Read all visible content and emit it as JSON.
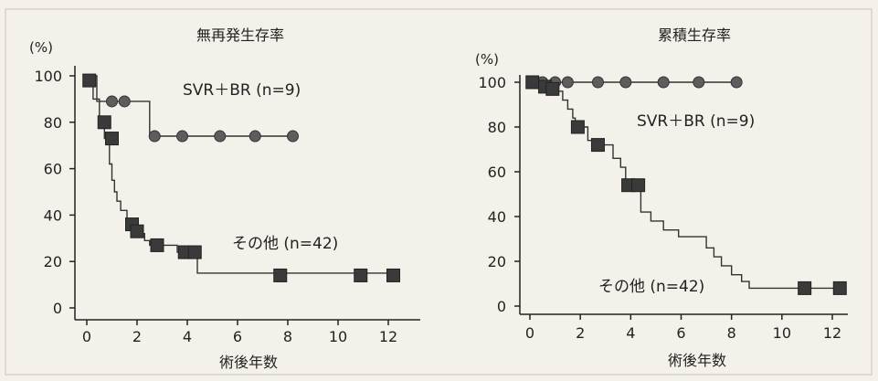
{
  "chart_data": [
    {
      "type": "line",
      "title": "無再発生存率",
      "ylabel": "(%)",
      "xlabel": "術後年数",
      "xlim": [
        0,
        12.6
      ],
      "ylim": [
        0,
        100
      ],
      "xticks": [
        "0",
        "2",
        "4",
        "6",
        "8",
        "10",
        "12"
      ],
      "yticks": [
        "0",
        "20",
        "40",
        "60",
        "80",
        "100"
      ],
      "grid": false,
      "series": [
        {
          "name": "SVR＋BR (n=9)",
          "marker": "circle",
          "step": [
            [
              0,
              100
            ],
            [
              0.4,
              100
            ],
            [
              0.4,
              89
            ],
            [
              2.5,
              89
            ],
            [
              2.5,
              74
            ],
            [
              8.3,
              74
            ]
          ],
          "markers": [
            [
              1.0,
              89
            ],
            [
              1.5,
              89
            ],
            [
              2.7,
              74
            ],
            [
              3.8,
              74
            ],
            [
              5.3,
              74
            ],
            [
              6.7,
              74
            ],
            [
              8.2,
              74
            ]
          ]
        },
        {
          "name": "その他 (n=42)",
          "marker": "square",
          "step": [
            [
              0,
              98
            ],
            [
              0.25,
              98
            ],
            [
              0.25,
              90
            ],
            [
              0.5,
              90
            ],
            [
              0.5,
              80
            ],
            [
              0.7,
              80
            ],
            [
              0.7,
              73
            ],
            [
              0.9,
              73
            ],
            [
              0.9,
              62
            ],
            [
              1.0,
              62
            ],
            [
              1.0,
              55
            ],
            [
              1.1,
              55
            ],
            [
              1.1,
              50
            ],
            [
              1.2,
              50
            ],
            [
              1.2,
              46
            ],
            [
              1.35,
              46
            ],
            [
              1.35,
              42
            ],
            [
              1.6,
              42
            ],
            [
              1.6,
              38
            ],
            [
              1.8,
              38
            ],
            [
              1.8,
              35
            ],
            [
              2.0,
              35
            ],
            [
              2.0,
              32
            ],
            [
              2.3,
              32
            ],
            [
              2.3,
              29
            ],
            [
              2.5,
              29
            ],
            [
              2.5,
              27
            ],
            [
              3.6,
              27
            ],
            [
              3.6,
              24
            ],
            [
              4.4,
              24
            ],
            [
              4.4,
              15
            ],
            [
              12.3,
              15
            ]
          ],
          "markers": [
            [
              0.1,
              98
            ],
            [
              0.7,
              80
            ],
            [
              1.0,
              73
            ],
            [
              1.8,
              36
            ],
            [
              2.0,
              33
            ],
            [
              2.8,
              27
            ],
            [
              3.9,
              24
            ],
            [
              4.3,
              24
            ],
            [
              7.7,
              14
            ],
            [
              10.9,
              14
            ],
            [
              12.2,
              14
            ]
          ]
        }
      ],
      "annotations": [
        "SVR＋BR (n=9)",
        "その他 (n=42)"
      ]
    },
    {
      "type": "line",
      "title": "累積生存率",
      "ylabel": "(%)",
      "xlabel": "術後年数",
      "xlim": [
        0,
        12.6
      ],
      "ylim": [
        0,
        100
      ],
      "xticks": [
        "0",
        "2",
        "4",
        "6",
        "8",
        "10",
        "12"
      ],
      "yticks": [
        "0",
        "20",
        "40",
        "60",
        "80",
        "100"
      ],
      "grid": false,
      "series": [
        {
          "name": "SVR＋BR (n=9)",
          "marker": "circle",
          "step": [
            [
              0,
              100
            ],
            [
              8.3,
              100
            ]
          ],
          "markers": [
            [
              0.5,
              100
            ],
            [
              1.0,
              100
            ],
            [
              1.5,
              100
            ],
            [
              2.7,
              100
            ],
            [
              3.8,
              100
            ],
            [
              5.3,
              100
            ],
            [
              6.7,
              100
            ],
            [
              8.2,
              100
            ]
          ]
        },
        {
          "name": "その他 (n=42)",
          "marker": "square",
          "step": [
            [
              0,
              100
            ],
            [
              0.5,
              100
            ],
            [
              0.5,
              98
            ],
            [
              1.0,
              98
            ],
            [
              1.0,
              96
            ],
            [
              1.3,
              96
            ],
            [
              1.3,
              92
            ],
            [
              1.5,
              92
            ],
            [
              1.5,
              88
            ],
            [
              1.7,
              88
            ],
            [
              1.7,
              84
            ],
            [
              1.8,
              84
            ],
            [
              1.8,
              80
            ],
            [
              2.3,
              80
            ],
            [
              2.3,
              74
            ],
            [
              2.5,
              74
            ],
            [
              2.5,
              72
            ],
            [
              3.3,
              72
            ],
            [
              3.3,
              66
            ],
            [
              3.6,
              66
            ],
            [
              3.6,
              62
            ],
            [
              3.8,
              62
            ],
            [
              3.8,
              54
            ],
            [
              4.4,
              54
            ],
            [
              4.4,
              42
            ],
            [
              4.8,
              42
            ],
            [
              4.8,
              38
            ],
            [
              5.3,
              38
            ],
            [
              5.3,
              34
            ],
            [
              5.9,
              34
            ],
            [
              5.9,
              31
            ],
            [
              7.0,
              31
            ],
            [
              7.0,
              26
            ],
            [
              7.3,
              26
            ],
            [
              7.3,
              22
            ],
            [
              7.6,
              22
            ],
            [
              7.6,
              18
            ],
            [
              8.0,
              18
            ],
            [
              8.0,
              14
            ],
            [
              8.4,
              14
            ],
            [
              8.4,
              11
            ],
            [
              8.7,
              11
            ],
            [
              8.7,
              8
            ],
            [
              12.3,
              8
            ]
          ],
          "markers": [
            [
              0.1,
              100
            ],
            [
              0.6,
              98
            ],
            [
              0.9,
              97
            ],
            [
              1.9,
              80
            ],
            [
              2.7,
              72
            ],
            [
              3.9,
              54
            ],
            [
              4.3,
              54
            ],
            [
              10.9,
              8
            ],
            [
              12.3,
              8
            ]
          ]
        }
      ],
      "annotations": [
        "SVR＋BR (n=9)",
        "その他 (n=42)"
      ]
    }
  ],
  "colors": {
    "background": "#f4f1ea",
    "axis": "#222222",
    "curve": "#333333",
    "circle_marker": "#5d5d5d",
    "square_marker": "#3a3a3a"
  }
}
